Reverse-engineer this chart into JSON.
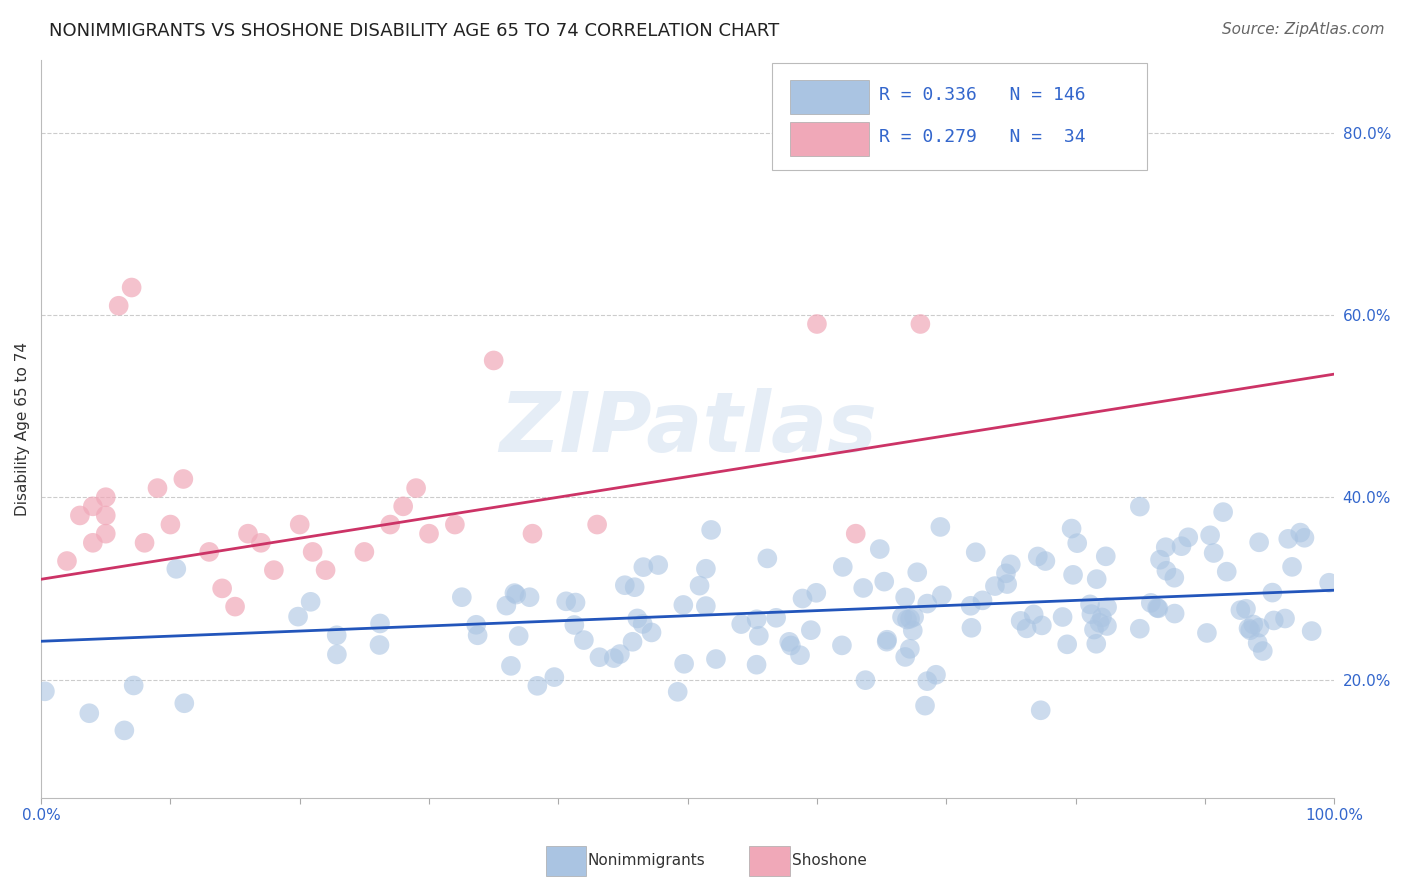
{
  "title": "NONIMMIGRANTS VS SHOSHONE DISABILITY AGE 65 TO 74 CORRELATION CHART",
  "source": "Source: ZipAtlas.com",
  "ylabel": "Disability Age 65 to 74",
  "xlim": [
    0,
    1
  ],
  "ylim": [
    0.07,
    0.88
  ],
  "blue_color": "#aac4e2",
  "pink_color": "#f0a8b8",
  "blue_line_color": "#2255bb",
  "pink_line_color": "#cc3366",
  "legend_blue_R": "0.336",
  "legend_blue_N": "146",
  "legend_pink_R": "0.279",
  "legend_pink_N": " 34",
  "watermark": "ZIPatlas",
  "blue_trend_y_start": 0.242,
  "blue_trend_y_end": 0.298,
  "pink_trend_y_start": 0.31,
  "pink_trend_y_end": 0.535,
  "yticks": [
    0.2,
    0.4,
    0.6,
    0.8
  ],
  "ytick_labels": [
    "20.0%",
    "40.0%",
    "60.0%",
    "80.0%"
  ],
  "grid_color": "#cccccc",
  "background_color": "#ffffff",
  "title_fontsize": 13,
  "axis_label_fontsize": 11,
  "tick_fontsize": 11,
  "source_fontsize": 11
}
